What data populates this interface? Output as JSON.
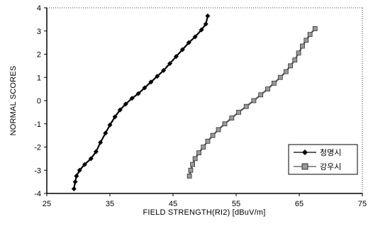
{
  "chart_data": {
    "type": "scatter",
    "title": "",
    "xlabel": "FIELD STRENGTH(RI2) [dBuV/m]",
    "ylabel": "NORMAL SCORES",
    "xlim": [
      25,
      75
    ],
    "ylim": [
      -4,
      4
    ],
    "x_ticks": [
      "25",
      "35",
      "45",
      "55",
      "65",
      "75"
    ],
    "y_ticks": [
      "-4",
      "-3",
      "-2",
      "-1",
      "0",
      "1",
      "2",
      "3",
      "4"
    ],
    "grid": false,
    "legend_position": "bottom-right",
    "series": [
      {
        "name": "청명시",
        "marker": "diamond",
        "color": "#000000",
        "points": [
          [
            29.3,
            -3.8
          ],
          [
            29.5,
            -3.5
          ],
          [
            29.7,
            -3.25
          ],
          [
            30.2,
            -3.0
          ],
          [
            31.0,
            -2.75
          ],
          [
            32.0,
            -2.5
          ],
          [
            32.8,
            -2.2
          ],
          [
            33.5,
            -1.8
          ],
          [
            34.3,
            -1.4
          ],
          [
            35.0,
            -1.05
          ],
          [
            35.8,
            -0.7
          ],
          [
            36.6,
            -0.4
          ],
          [
            37.5,
            -0.15
          ],
          [
            38.5,
            0.1
          ],
          [
            39.5,
            0.3
          ],
          [
            40.5,
            0.55
          ],
          [
            41.5,
            0.8
          ],
          [
            42.5,
            1.05
          ],
          [
            43.5,
            1.3
          ],
          [
            44.5,
            1.6
          ],
          [
            45.5,
            1.9
          ],
          [
            46.5,
            2.2
          ],
          [
            47.5,
            2.5
          ],
          [
            48.5,
            2.75
          ],
          [
            49.5,
            3.05
          ],
          [
            50.2,
            3.3
          ],
          [
            50.5,
            3.65
          ]
        ]
      },
      {
        "name": "강우시",
        "marker": "square",
        "color": "#888888",
        "points": [
          [
            47.6,
            -3.25
          ],
          [
            47.8,
            -3.0
          ],
          [
            48.1,
            -2.75
          ],
          [
            48.5,
            -2.5
          ],
          [
            49.1,
            -2.25
          ],
          [
            49.8,
            -2.0
          ],
          [
            50.5,
            -1.75
          ],
          [
            51.3,
            -1.5
          ],
          [
            52.2,
            -1.25
          ],
          [
            53.2,
            -1.0
          ],
          [
            54.3,
            -0.75
          ],
          [
            55.4,
            -0.5
          ],
          [
            56.6,
            -0.25
          ],
          [
            57.8,
            0.0
          ],
          [
            58.9,
            0.25
          ],
          [
            60.0,
            0.5
          ],
          [
            61.0,
            0.75
          ],
          [
            62.0,
            1.0
          ],
          [
            62.9,
            1.25
          ],
          [
            63.6,
            1.5
          ],
          [
            64.3,
            1.75
          ],
          [
            64.9,
            2.05
          ],
          [
            65.5,
            2.35
          ],
          [
            66.1,
            2.6
          ],
          [
            66.7,
            2.85
          ],
          [
            67.5,
            3.1
          ]
        ]
      }
    ]
  }
}
